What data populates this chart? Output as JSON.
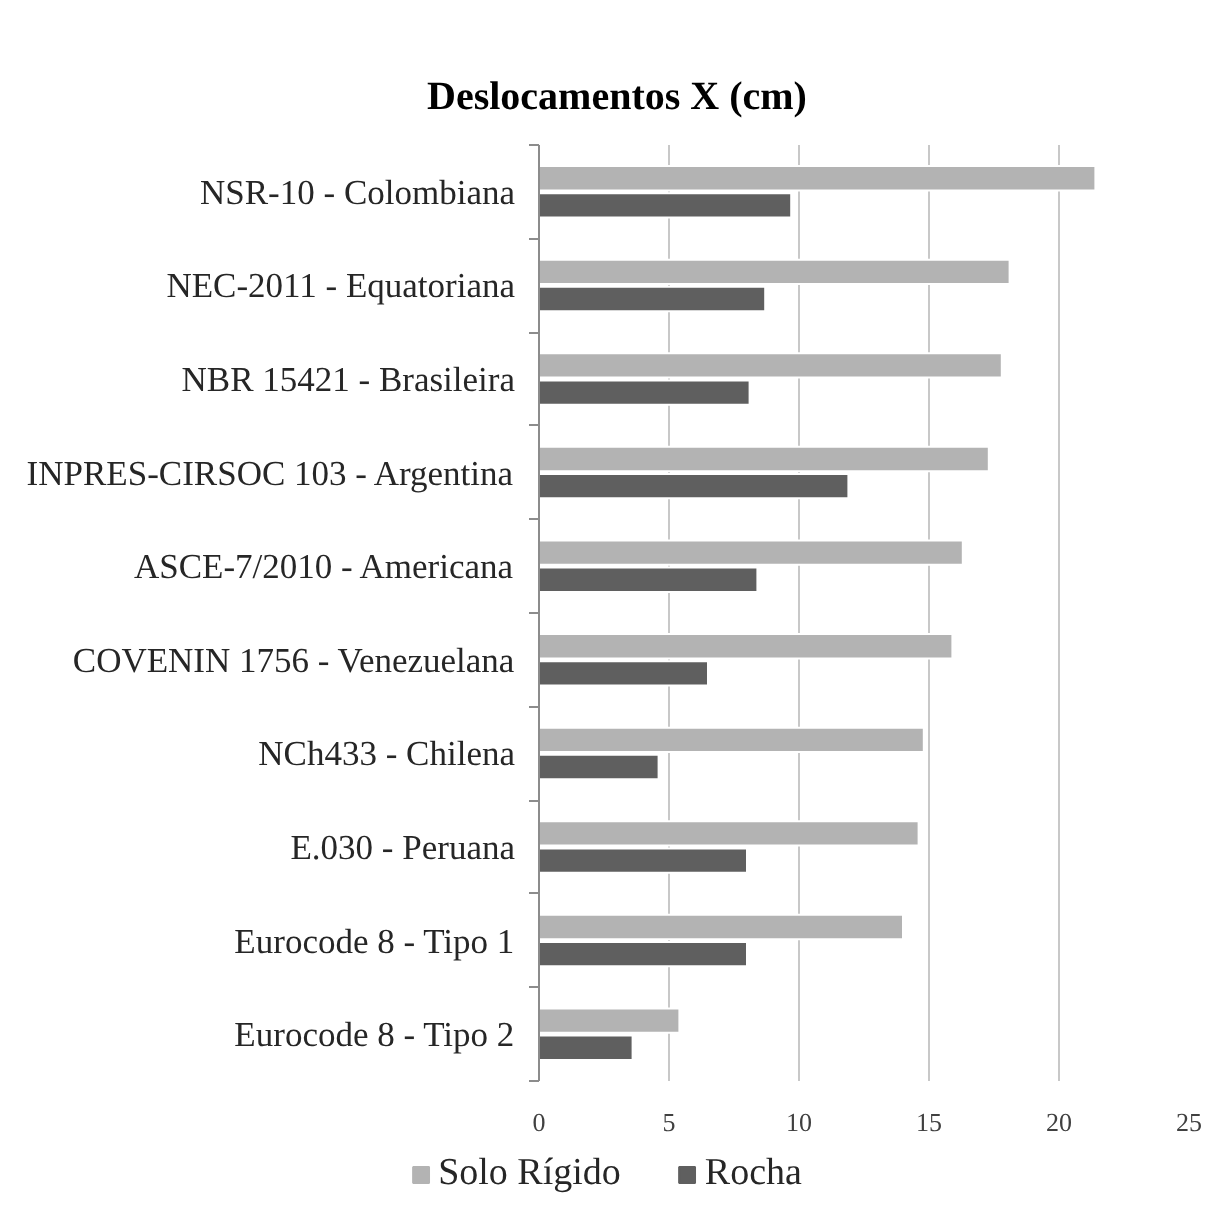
{
  "chart_data": {
    "type": "bar",
    "orientation": "horizontal",
    "title": "Deslocamentos X (cm)",
    "categories": [
      "NSR-10 - Colombiana",
      "NEC-2011 - Equatoriana",
      "NBR 15421 - Brasileira",
      "INPRES-CIRSOC 103 - Argentina",
      "ASCE-7/2010 - Americana",
      "COVENIN 1756 - Venezuelana",
      "NCh433 - Chilena",
      "E.030 - Peruana",
      "Eurocode 8 - Tipo 1",
      "Eurocode 8 - Tipo 2"
    ],
    "series": [
      {
        "name": "Solo Rígido",
        "color": "#b3b3b3",
        "values": [
          21.4,
          18.1,
          17.8,
          17.3,
          16.3,
          15.9,
          14.8,
          14.6,
          14.0,
          5.4
        ]
      },
      {
        "name": "Rocha",
        "color": "#5f5f5f",
        "values": [
          9.7,
          8.7,
          8.1,
          11.9,
          8.4,
          6.5,
          4.6,
          8.0,
          8.0,
          3.6
        ]
      }
    ],
    "xlim": [
      0,
      25
    ],
    "xticks": [
      0,
      5,
      10,
      15,
      20,
      25
    ],
    "grid": "x",
    "legend": "bottom"
  }
}
